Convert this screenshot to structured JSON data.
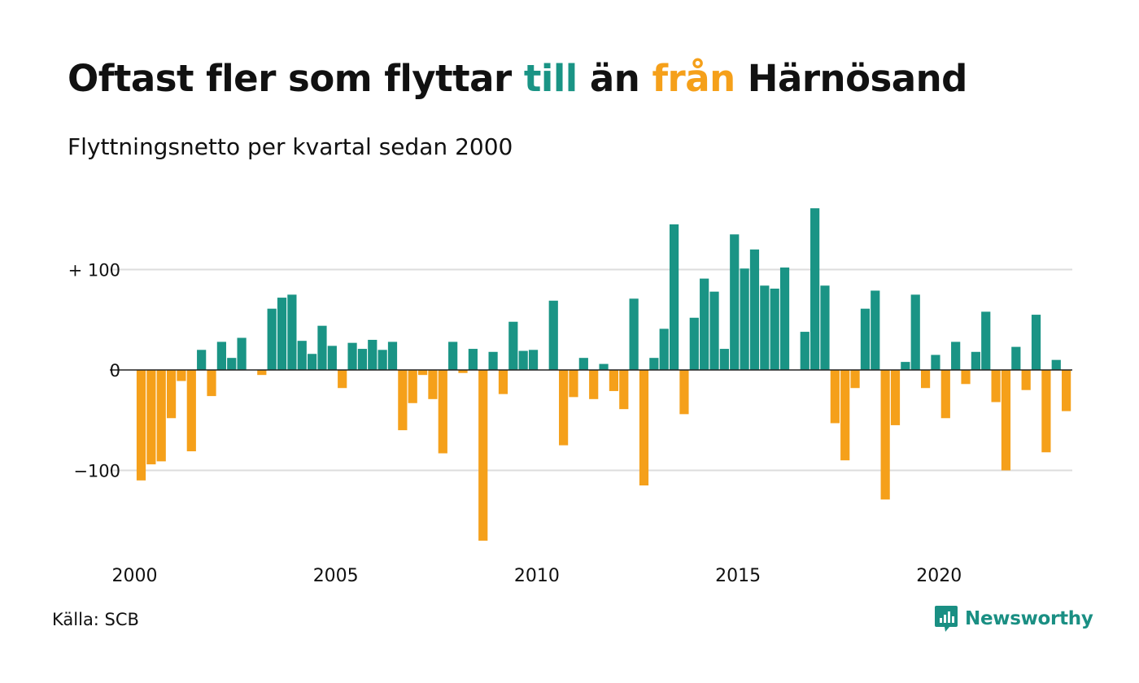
{
  "title": {
    "part1": "Oftast fler som flyttar ",
    "part2": "till",
    "part3": " än ",
    "part4": "från",
    "part5": " Härnösand"
  },
  "subtitle": "Flyttningsnetto per kvartal sedan 2000",
  "source": "Källa: SCB",
  "logo": {
    "name": "Newsworthy",
    "icon": "newsworthy-logo-icon"
  },
  "colors": {
    "positive": "#1a9485",
    "negative": "#f5a01a",
    "grid": "#dddddd",
    "zero": "#222222"
  },
  "chart_data": {
    "type": "bar",
    "x_start": "2000 Q1",
    "xticks": [
      "2000",
      "2005",
      "2010",
      "2015",
      "2020"
    ],
    "yticks": [
      {
        "value": 100,
        "label": "+ 100"
      },
      {
        "value": 0,
        "label": "0"
      },
      {
        "value": -100,
        "label": "−100"
      }
    ],
    "ylim": [
      -170,
      165
    ],
    "values": [
      -110,
      -94,
      -91,
      -48,
      -11,
      -81,
      20,
      -26,
      28,
      12,
      32,
      0,
      -5,
      61,
      72,
      75,
      29,
      16,
      44,
      24,
      -18,
      27,
      21,
      30,
      20,
      28,
      -60,
      -33,
      -5,
      -29,
      -83,
      28,
      -3,
      21,
      -170,
      18,
      -24,
      48,
      19,
      20,
      0,
      69,
      -75,
      -27,
      12,
      -29,
      6,
      -21,
      -39,
      71,
      -115,
      12,
      41,
      145,
      -44,
      52,
      91,
      78,
      21,
      135,
      101,
      120,
      84,
      81,
      102,
      0,
      38,
      161,
      84,
      -53,
      -90,
      -18,
      61,
      79,
      -129,
      -55,
      8,
      75,
      -18,
      15,
      -48,
      28,
      -14,
      18,
      58,
      -32,
      -100,
      23,
      -20,
      55,
      -82,
      10,
      -41
    ]
  }
}
